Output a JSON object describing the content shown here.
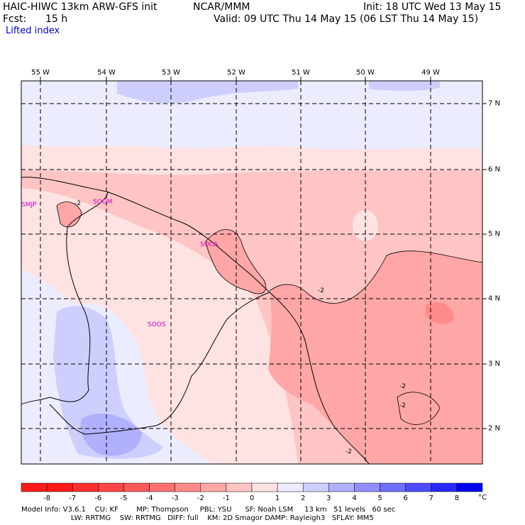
{
  "header": {
    "model_title": "HAIC-HIWC 13km ARW-GFS init",
    "org": "NCAR/MMM",
    "init": "Init: 18 UTC Wed 13 May 15",
    "fcst_label": "Fcst:",
    "fcst_value": "15 h",
    "valid": "Valid: 09 UTC Thu 14 May 15 (06 LST Thu 14 May 15)",
    "field": "Lifted index"
  },
  "map": {
    "lon_labels": [
      "55 W",
      "54 W",
      "53 W",
      "52 W",
      "51 W",
      "50 W",
      "49 W"
    ],
    "lat_labels": [
      "7 N",
      "6 N",
      "5 N",
      "4 N",
      "3 N",
      "2 N"
    ],
    "stations": [
      "SMJP",
      "SOGM",
      "SOCA",
      "SOOS"
    ],
    "contour_label": "-2"
  },
  "colorbar": {
    "ticks": [
      "-8",
      "-7",
      "-6",
      "-5",
      "-4",
      "-3",
      "-2",
      "-1",
      "0",
      "1",
      "2",
      "3",
      "4",
      "5",
      "6",
      "7",
      "8"
    ],
    "unit": "°C",
    "colors": [
      "#ff1a1a",
      "#ff3030",
      "#ff4545",
      "#ff5a5a",
      "#ff7070",
      "#ff8a8a",
      "#ffa6a6",
      "#ffc4c4",
      "#ffe2e2",
      "#ececff",
      "#cfcfff",
      "#b0b0ff",
      "#9090ff",
      "#6e6eff",
      "#4c4cff",
      "#2828ff",
      "#0000ee"
    ]
  },
  "footer": {
    "line1": "Model Info: V3.6.1    CU: KF        MP: Thompson     PBL: YSU      SF: Noah LSM     13 km   51 levels   60 sec",
    "line2": "                      LW: RRTMG    SW: RRTMG   DIFF: full    KM: 2D Smagor DAMP: Rayleigh3   SFLAY: MM5"
  }
}
